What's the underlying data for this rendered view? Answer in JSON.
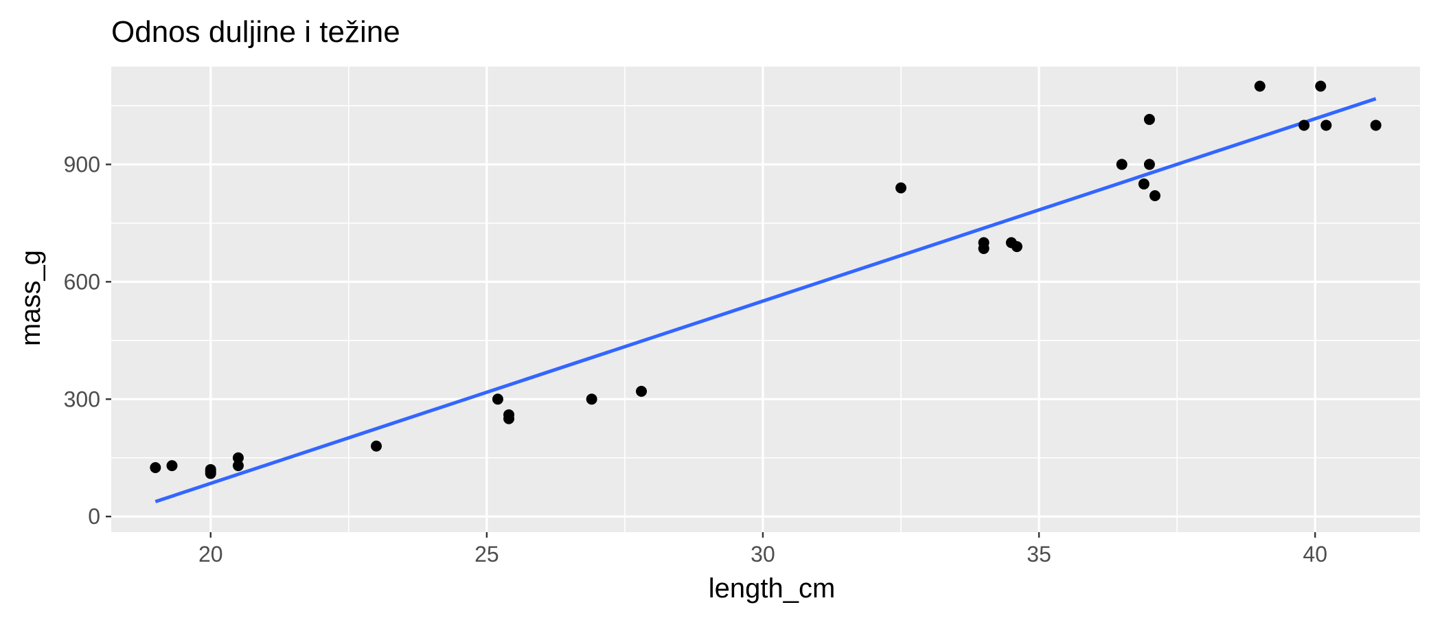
{
  "chart_data": {
    "type": "scatter",
    "title": "Odnos duljine i težine",
    "xlabel": "length_cm",
    "ylabel": "mass_g",
    "xlim": [
      18.2,
      41.9
    ],
    "ylim": [
      -40,
      1150
    ],
    "x_ticks": [
      20,
      25,
      30,
      35,
      40
    ],
    "x_tick_labels": [
      "20",
      "25",
      "30",
      "35",
      "40"
    ],
    "y_ticks": [
      0,
      300,
      600,
      900
    ],
    "y_tick_labels": [
      "0",
      "300",
      "600",
      "900"
    ],
    "x_minor": [
      22.5,
      27.5,
      32.5,
      37.5
    ],
    "y_minor": [
      150,
      450,
      750,
      1050
    ],
    "grid": true,
    "legend": "none",
    "colors": {
      "panel": "#ebebeb",
      "grid": "#ffffff",
      "points": "#000000",
      "line": "#3366ff",
      "tick": "#333333"
    },
    "series": [
      {
        "type": "scatter",
        "x": [
          19.0,
          19.3,
          20.0,
          20.0,
          20.0,
          20.5,
          20.5,
          23.0,
          25.2,
          25.4,
          25.4,
          26.9,
          27.8,
          32.5,
          34.0,
          34.0,
          34.5,
          34.6,
          36.5,
          36.9,
          37.0,
          37.0,
          37.1,
          39.0,
          39.8,
          40.1,
          40.2,
          41.1
        ],
        "y": [
          125,
          130,
          110,
          115,
          120,
          130,
          150,
          180,
          300,
          250,
          260,
          300,
          320,
          840,
          685,
          700,
          700,
          690,
          900,
          850,
          900,
          1015,
          820,
          1100,
          1000,
          1100,
          1000,
          1000
        ]
      },
      {
        "type": "line",
        "x": [
          19.0,
          41.1
        ],
        "y": [
          38,
          1068
        ]
      }
    ]
  }
}
